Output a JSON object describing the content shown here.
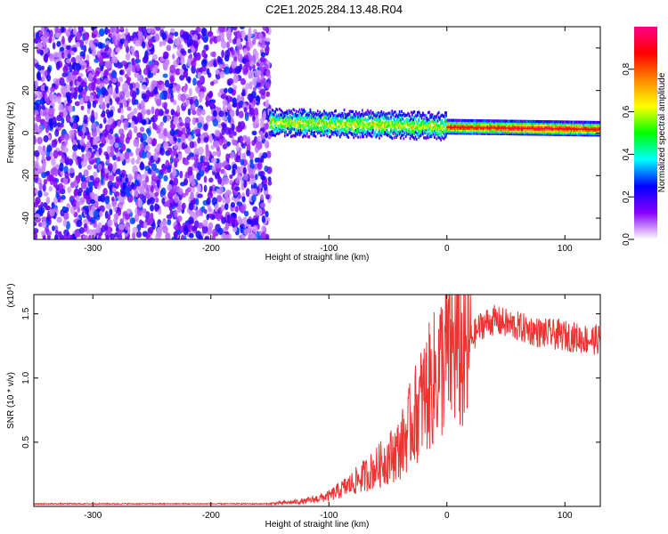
{
  "title": "C2E1.2025.284.13.48.R04",
  "chart_data": [
    {
      "type": "heatmap",
      "xlabel": "Height of straight line (km)",
      "ylabel": "Frequency (Hz)",
      "xlim": [
        -350,
        130
      ],
      "ylim": [
        -50,
        50
      ],
      "xticks": [
        -300,
        -200,
        -100,
        0,
        100
      ],
      "yticks": [
        -40,
        -20,
        0,
        20,
        40
      ],
      "regions": [
        {
          "name": "noise",
          "x": [
            -350,
            -150
          ],
          "y": [
            -50,
            50
          ],
          "amplitude": [
            0.05,
            0.3
          ]
        },
        {
          "name": "signal",
          "x": [
            -150,
            130
          ],
          "center_freq_hz": [
            5,
            4,
            3,
            2
          ],
          "center_freq_x": [
            -150,
            -50,
            0,
            130
          ],
          "amplitude": [
            0.3,
            1.0
          ]
        }
      ],
      "colorbar": {
        "label": "Normalized spectral amplitude",
        "range": [
          0,
          1
        ],
        "ticks": [
          0.0,
          0.2,
          0.4,
          0.6,
          0.8
        ],
        "colors": [
          "#ffffff",
          "#8800ff",
          "#0000ff",
          "#00ffff",
          "#00ff00",
          "#ffff00",
          "#ff8800",
          "#ff0000",
          "#ff0088"
        ]
      }
    },
    {
      "type": "line",
      "xlabel": "Height of straight line (km)",
      "ylabel": "SNR (10 * v/v)",
      "multiplier": "(x10⁴)",
      "xlim": [
        -350,
        130
      ],
      "ylim": [
        0,
        1.65
      ],
      "xticks": [
        -300,
        -200,
        -100,
        0,
        100
      ],
      "yticks": [
        0.5,
        1.0,
        1.5
      ],
      "color": "#ee3333",
      "series": [
        {
          "x": [
            -350,
            -300,
            -250,
            -200,
            -150,
            -120,
            -100,
            -80,
            -60,
            -40,
            -30,
            -20,
            -10,
            0,
            10,
            15,
            20,
            30,
            40,
            60,
            80,
            100,
            120,
            130
          ],
          "values": [
            0.02,
            0.02,
            0.02,
            0.02,
            0.02,
            0.04,
            0.08,
            0.18,
            0.3,
            0.45,
            0.65,
            0.85,
            1.0,
            1.2,
            1.25,
            1.1,
            1.3,
            1.42,
            1.45,
            1.4,
            1.35,
            1.33,
            1.3,
            1.3
          ]
        }
      ]
    }
  ]
}
